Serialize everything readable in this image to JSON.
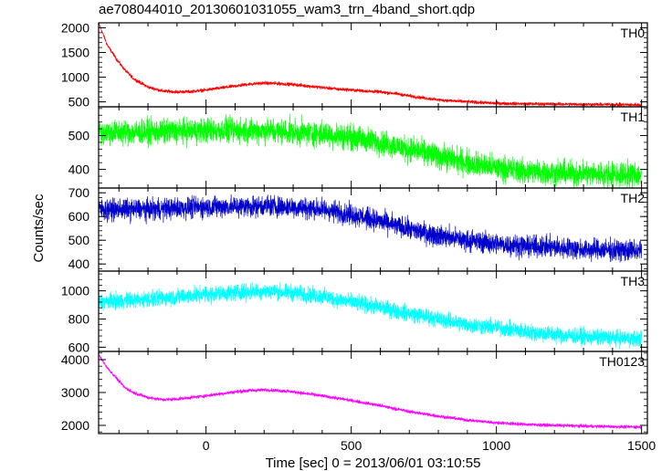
{
  "chart_data": {
    "type": "line",
    "title": "ae708044010_20130601031055_wam3_trn_4band_short.qdp",
    "xlabel": "Time [sec] 0 = 2013/06/01 03:10:55",
    "ylabel": "Counts/sec",
    "xlim": [
      -370,
      1520
    ],
    "x_ticks": [
      0,
      500,
      1000,
      1500
    ],
    "panels": [
      {
        "name": "TH0",
        "color": "#ff0000",
        "ylim": [
          400,
          2100
        ],
        "y_ticks": [
          500,
          1000,
          1500,
          2000
        ],
        "x": [
          -370,
          -340,
          -310,
          -280,
          -250,
          -200,
          -150,
          -100,
          -50,
          0,
          50,
          100,
          150,
          200,
          250,
          300,
          350,
          400,
          450,
          500,
          550,
          600,
          650,
          700,
          750,
          800,
          850,
          900,
          1000,
          1100,
          1200,
          1300,
          1400,
          1500
        ],
        "values": [
          2100,
          1650,
          1380,
          1150,
          970,
          800,
          720,
          700,
          710,
          740,
          780,
          820,
          860,
          880,
          870,
          850,
          820,
          790,
          760,
          740,
          720,
          700,
          670,
          620,
          580,
          540,
          520,
          500,
          470,
          460,
          455,
          450,
          445,
          440
        ],
        "noise": 30
      },
      {
        "name": "TH1",
        "color": "#00ff00",
        "ylim": [
          345,
          585
        ],
        "y_ticks": [
          400,
          500
        ],
        "x": [
          -370,
          -200,
          0,
          200,
          300,
          400,
          500,
          600,
          700,
          800,
          900,
          1000,
          1100,
          1200,
          1300,
          1400,
          1500
        ],
        "values": [
          510,
          510,
          515,
          515,
          510,
          505,
          495,
          480,
          460,
          440,
          420,
          405,
          395,
          390,
          388,
          385,
          385
        ],
        "noise": 32
      },
      {
        "name": "TH2",
        "color": "#0000cc",
        "ylim": [
          370,
          720
        ],
        "y_ticks": [
          400,
          500,
          600,
          700
        ],
        "x": [
          -370,
          -200,
          0,
          200,
          300,
          400,
          500,
          600,
          700,
          800,
          900,
          1000,
          1100,
          1200,
          1300,
          1400,
          1500
        ],
        "values": [
          630,
          630,
          640,
          645,
          640,
          630,
          610,
          580,
          545,
          520,
          500,
          485,
          475,
          470,
          462,
          458,
          455
        ],
        "noise": 38
      },
      {
        "name": "TH3",
        "color": "#00ffff",
        "ylim": [
          570,
          1140
        ],
        "y_ticks": [
          600,
          800,
          1000
        ],
        "x": [
          -370,
          -200,
          0,
          200,
          300,
          400,
          500,
          600,
          700,
          800,
          900,
          1000,
          1100,
          1200,
          1300,
          1400,
          1500
        ],
        "values": [
          920,
          940,
          975,
          1000,
          985,
          960,
          920,
          880,
          840,
          800,
          760,
          740,
          710,
          690,
          675,
          665,
          660
        ],
        "noise": 50
      },
      {
        "name": "TH0123",
        "color": "#ff00ff",
        "ylim": [
          1750,
          4250
        ],
        "y_ticks": [
          2000,
          3000,
          4000
        ],
        "x": [
          -370,
          -340,
          -310,
          -280,
          -250,
          -200,
          -150,
          -100,
          -50,
          0,
          50,
          100,
          150,
          200,
          250,
          300,
          350,
          400,
          450,
          500,
          550,
          600,
          700,
          800,
          900,
          1000,
          1100,
          1200,
          1300,
          1400,
          1500
        ],
        "values": [
          4150,
          3750,
          3450,
          3150,
          3000,
          2850,
          2780,
          2800,
          2850,
          2900,
          2960,
          3020,
          3060,
          3080,
          3060,
          3020,
          2960,
          2900,
          2830,
          2760,
          2680,
          2600,
          2420,
          2280,
          2160,
          2080,
          2030,
          2000,
          1980,
          1960,
          1950
        ],
        "noise": 45
      }
    ]
  }
}
